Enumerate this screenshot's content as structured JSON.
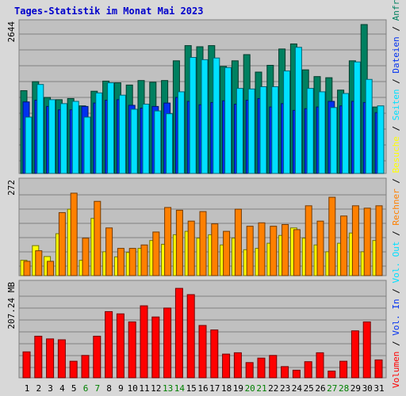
{
  "page": {
    "title": "Tages-Statistik im Monat Mai 2023"
  },
  "chart_data": {
    "type": "bar",
    "title": "Tages-Statistik im Monat Mai 2023",
    "days": [
      "1",
      "2",
      "3",
      "4",
      "5",
      "6",
      "7",
      "8",
      "9",
      "10",
      "11",
      "12",
      "13",
      "14",
      "15",
      "16",
      "17",
      "18",
      "19",
      "20",
      "21",
      "22",
      "23",
      "24",
      "25",
      "26",
      "27",
      "28",
      "29",
      "30",
      "31"
    ],
    "weekend_days": [
      "6",
      "7",
      "13",
      "14",
      "20",
      "21",
      "27",
      "28"
    ],
    "colors": {
      "anfragen": "#008060",
      "dateien": "#0030f0",
      "seiten": "#00e0ff",
      "besuche": "#ffff00",
      "rechner": "#ff8000",
      "volumen": "#ff0000",
      "weekend": "#008000",
      "weekday": "#000000"
    },
    "panels": [
      {
        "name": "hits",
        "max_label": "2644",
        "max": 2644,
        "series": [
          {
            "name": "Anfragen",
            "values": [
              1470,
              1630,
              1350,
              1310,
              1330,
              1200,
              1460,
              1640,
              1610,
              1570,
              1650,
              1620,
              1650,
              2000,
              2270,
              2250,
              2270,
              1900,
              2000,
              2110,
              1800,
              1920,
              2210,
              2300,
              1840,
              1720,
              1700,
              1480,
              2000,
              2644,
              1180
            ]
          },
          {
            "name": "Dateien",
            "values": [
              1270,
              1300,
              1190,
              1130,
              1130,
              1190,
              1250,
              1300,
              1310,
              1210,
              1160,
              1190,
              1250,
              1350,
              1280,
              1220,
              1260,
              1290,
              1230,
              1300,
              1330,
              1180,
              1240,
              1120,
              1150,
              1180,
              1280,
              1200,
              1280,
              1260,
              1080
            ]
          },
          {
            "name": "Seiten",
            "values": [
              1000,
              1580,
              1310,
              1240,
              1280,
              1000,
              1430,
              1610,
              1390,
              1140,
              1230,
              1110,
              1060,
              1450,
              2060,
              2020,
              2050,
              1880,
              1510,
              1500,
              1540,
              1540,
              1820,
              2240,
              1510,
              1450,
              1170,
              1420,
              1980,
              1670,
              1200
            ]
          }
        ]
      },
      {
        "name": "visits",
        "max_label": "272",
        "max": 272,
        "series": [
          {
            "name": "Besuche",
            "values": [
              45,
              88,
              56,
              123,
              195,
              45,
              168,
              70,
              55,
              68,
              80,
              103,
              92,
              120,
              130,
              110,
              120,
              90,
              110,
              76,
              80,
              95,
              118,
              140,
              110,
              90,
              70,
              95,
              125,
              70,
              103
            ]
          },
          {
            "name": "Rechner",
            "values": [
              42,
              73,
              42,
              185,
              242,
              110,
              218,
              140,
              80,
              80,
              90,
              128,
              200,
              192,
              160,
              188,
              152,
              130,
              195,
              145,
              155,
              145,
              150,
              135,
              205,
              160,
              230,
              175,
              205,
              198,
              205
            ]
          }
        ]
      },
      {
        "name": "volume",
        "max_label": "207.24 MB",
        "max": 207.24,
        "series": [
          {
            "name": "Volumen",
            "values": [
              58,
              93,
              87,
              85,
              37,
              50,
              93,
              148,
              143,
              125,
              161,
              136,
              156,
              200,
              186,
              117,
              107,
              53,
              56,
              34,
              44,
              50,
              25,
              17,
              36,
              56,
              15,
              37,
              105,
              125,
              40
            ]
          }
        ]
      }
    ],
    "legend": [
      "Volumen",
      "/",
      "Vol. In",
      "/",
      "Vol. Out",
      "/",
      "Rechner",
      "/",
      "Besuche",
      "/",
      "Seiten",
      "/",
      "Dateien",
      "/",
      "Anfragen"
    ]
  }
}
